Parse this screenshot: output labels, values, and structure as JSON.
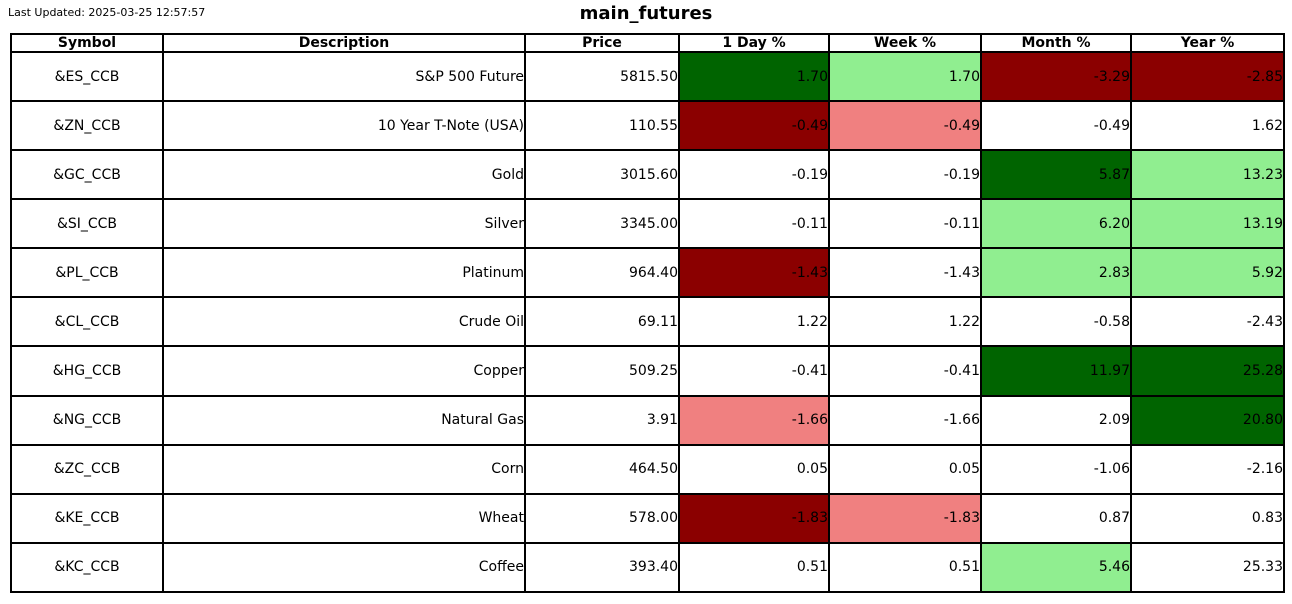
{
  "header": {
    "last_updated": "Last Updated: 2025-03-25 12:57:57",
    "title": "main_futures"
  },
  "colors": {
    "strong_gain": "#006400",
    "gain": "#90EE90",
    "strong_loss": "#8B0000",
    "loss": "#F08080",
    "neutral": "#FFFFFF"
  },
  "chart_data": {
    "type": "table",
    "title": "main_futures",
    "columns": [
      "Symbol",
      "Description",
      "Price",
      "1 Day %",
      "Week %",
      "Month %",
      "Year %"
    ],
    "rows": [
      {
        "symbol": "&ES_CCB",
        "description": "S&P 500 Future",
        "price": "5815.50",
        "changes": [
          {
            "col": "1 Day %",
            "value": "1.70",
            "color": "strong_gain"
          },
          {
            "col": "Week %",
            "value": "1.70",
            "color": "gain"
          },
          {
            "col": "Month %",
            "value": "-3.29",
            "color": "strong_loss"
          },
          {
            "col": "Year %",
            "value": "-2.85",
            "color": "strong_loss"
          }
        ]
      },
      {
        "symbol": "&ZN_CCB",
        "description": "10 Year T-Note (USA)",
        "price": "110.55",
        "changes": [
          {
            "col": "1 Day %",
            "value": "-0.49",
            "color": "strong_loss"
          },
          {
            "col": "Week %",
            "value": "-0.49",
            "color": "loss"
          },
          {
            "col": "Month %",
            "value": "-0.49",
            "color": "neutral"
          },
          {
            "col": "Year %",
            "value": "1.62",
            "color": "neutral"
          }
        ]
      },
      {
        "symbol": "&GC_CCB",
        "description": "Gold",
        "price": "3015.60",
        "changes": [
          {
            "col": "1 Day %",
            "value": "-0.19",
            "color": "neutral"
          },
          {
            "col": "Week %",
            "value": "-0.19",
            "color": "neutral"
          },
          {
            "col": "Month %",
            "value": "5.87",
            "color": "strong_gain"
          },
          {
            "col": "Year %",
            "value": "13.23",
            "color": "gain"
          }
        ]
      },
      {
        "symbol": "&SI_CCB",
        "description": "Silver",
        "price": "3345.00",
        "changes": [
          {
            "col": "1 Day %",
            "value": "-0.11",
            "color": "neutral"
          },
          {
            "col": "Week %",
            "value": "-0.11",
            "color": "neutral"
          },
          {
            "col": "Month %",
            "value": "6.20",
            "color": "gain"
          },
          {
            "col": "Year %",
            "value": "13.19",
            "color": "gain"
          }
        ]
      },
      {
        "symbol": "&PL_CCB",
        "description": "Platinum",
        "price": "964.40",
        "changes": [
          {
            "col": "1 Day %",
            "value": "-1.43",
            "color": "strong_loss"
          },
          {
            "col": "Week %",
            "value": "-1.43",
            "color": "neutral"
          },
          {
            "col": "Month %",
            "value": "2.83",
            "color": "gain"
          },
          {
            "col": "Year %",
            "value": "5.92",
            "color": "gain"
          }
        ]
      },
      {
        "symbol": "&CL_CCB",
        "description": "Crude Oil",
        "price": "69.11",
        "changes": [
          {
            "col": "1 Day %",
            "value": "1.22",
            "color": "neutral"
          },
          {
            "col": "Week %",
            "value": "1.22",
            "color": "neutral"
          },
          {
            "col": "Month %",
            "value": "-0.58",
            "color": "neutral"
          },
          {
            "col": "Year %",
            "value": "-2.43",
            "color": "neutral"
          }
        ]
      },
      {
        "symbol": "&HG_CCB",
        "description": "Copper",
        "price": "509.25",
        "changes": [
          {
            "col": "1 Day %",
            "value": "-0.41",
            "color": "neutral"
          },
          {
            "col": "Week %",
            "value": "-0.41",
            "color": "neutral"
          },
          {
            "col": "Month %",
            "value": "11.97",
            "color": "strong_gain"
          },
          {
            "col": "Year %",
            "value": "25.28",
            "color": "strong_gain"
          }
        ]
      },
      {
        "symbol": "&NG_CCB",
        "description": "Natural Gas",
        "price": "3.91",
        "changes": [
          {
            "col": "1 Day %",
            "value": "-1.66",
            "color": "loss"
          },
          {
            "col": "Week %",
            "value": "-1.66",
            "color": "neutral"
          },
          {
            "col": "Month %",
            "value": "2.09",
            "color": "neutral"
          },
          {
            "col": "Year %",
            "value": "20.80",
            "color": "strong_gain"
          }
        ]
      },
      {
        "symbol": "&ZC_CCB",
        "description": "Corn",
        "price": "464.50",
        "changes": [
          {
            "col": "1 Day %",
            "value": "0.05",
            "color": "neutral"
          },
          {
            "col": "Week %",
            "value": "0.05",
            "color": "neutral"
          },
          {
            "col": "Month %",
            "value": "-1.06",
            "color": "neutral"
          },
          {
            "col": "Year %",
            "value": "-2.16",
            "color": "neutral"
          }
        ]
      },
      {
        "symbol": "&KE_CCB",
        "description": "Wheat",
        "price": "578.00",
        "changes": [
          {
            "col": "1 Day %",
            "value": "-1.83",
            "color": "strong_loss"
          },
          {
            "col": "Week %",
            "value": "-1.83",
            "color": "loss"
          },
          {
            "col": "Month %",
            "value": "0.87",
            "color": "neutral"
          },
          {
            "col": "Year %",
            "value": "0.83",
            "color": "neutral"
          }
        ]
      },
      {
        "symbol": "&KC_CCB",
        "description": "Coffee",
        "price": "393.40",
        "changes": [
          {
            "col": "1 Day %",
            "value": "0.51",
            "color": "neutral"
          },
          {
            "col": "Week %",
            "value": "0.51",
            "color": "neutral"
          },
          {
            "col": "Month %",
            "value": "5.46",
            "color": "gain"
          },
          {
            "col": "Year %",
            "value": "25.33",
            "color": "neutral"
          }
        ]
      }
    ]
  }
}
